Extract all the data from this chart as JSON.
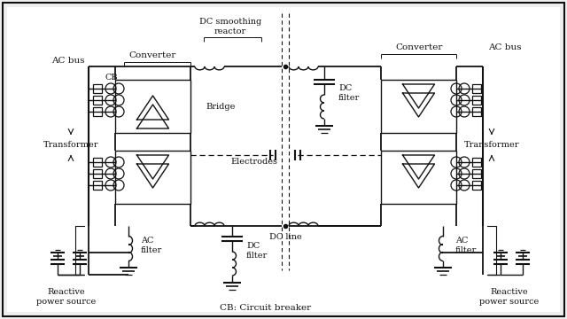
{
  "bg_color": "#f0f0f0",
  "fg_color": "#111111",
  "labels": {
    "ac_bus_left": "AC bus",
    "ac_bus_right": "AC bus",
    "converter_left": "Converter",
    "converter_right": "Converter",
    "dc_smoothing": "DC smoothing\nreactor",
    "cb": "CB",
    "bridge_top": "Bridge",
    "transformer_left": "Transformer",
    "transformer_right": "Transformer",
    "electrodes": "Electrodes",
    "dc_filter_top": "DC\nfilter",
    "dc_filter_bot": "DC\nfilter",
    "dc_line": "DC line",
    "ac_filter_left": "AC\nfilter",
    "ac_filter_right": "AC\nfilter",
    "reactive_left": "Reactive\npower source",
    "reactive_right": "Reactive\npower source",
    "cb_full": "CB: Circuit breaker"
  }
}
